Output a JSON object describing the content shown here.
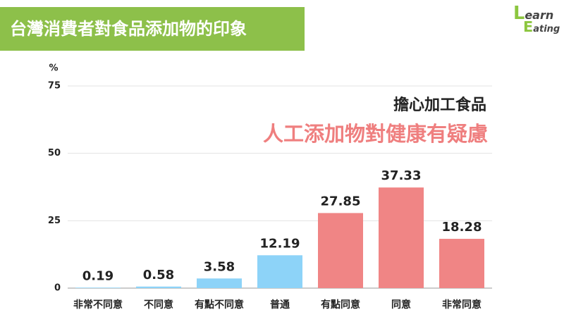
{
  "title": "台灣消費者對食品添加物的印象",
  "logo": {
    "line1": "Learn",
    "line2": "Eating"
  },
  "chart_data": {
    "type": "bar",
    "y_label": "%",
    "annotations": [
      "擔心加工食品",
      "人工添加物對健康有疑慮"
    ],
    "categories": [
      "非常不同意",
      "不同意",
      "有點不同意",
      "普通",
      "有點同意",
      "同意",
      "非常同意"
    ],
    "values": [
      0.19,
      0.58,
      3.58,
      12.19,
      27.85,
      37.33,
      18.28
    ],
    "colors": [
      "#8dd3f8",
      "#8dd3f8",
      "#8dd3f8",
      "#8dd3f8",
      "#f08585",
      "#f08585",
      "#f08585"
    ],
    "ylim": [
      0,
      75
    ],
    "yticks": [
      0,
      25,
      50,
      75
    ],
    "grid": true
  }
}
